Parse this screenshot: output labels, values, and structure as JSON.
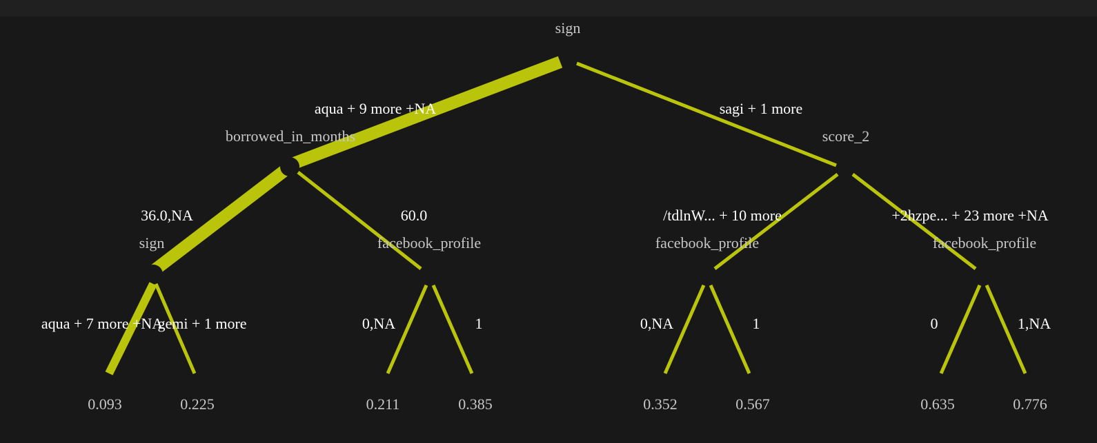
{
  "colors": {
    "background": "#181818",
    "edge": "#b9c40a",
    "node_text": "#c8c8c8",
    "edge_text": "#ffffff"
  },
  "tree": {
    "root": {
      "label": "sign"
    },
    "level1": [
      {
        "label": "borrowed_in_months",
        "edge_label": "aqua + 9 more +NA"
      },
      {
        "label": "score_2",
        "edge_label": "sagi + 1 more"
      }
    ],
    "level2": [
      {
        "label": "sign",
        "edge_label": "36.0,NA"
      },
      {
        "label": "facebook_profile",
        "edge_label": "60.0"
      },
      {
        "label": "facebook_profile",
        "edge_label": "/tdlnW... + 10 more"
      },
      {
        "label": "facebook_profile",
        "edge_label": "+2hzpe... + 23 more +NA"
      }
    ],
    "leaves": [
      {
        "value": "0.093",
        "edge_label": "aqua + 7 more +NA"
      },
      {
        "value": "0.225",
        "edge_label": "gemi + 1 more"
      },
      {
        "value": "0.211",
        "edge_label": "0,NA"
      },
      {
        "value": "0.385",
        "edge_label": "1"
      },
      {
        "value": "0.352",
        "edge_label": "0,NA"
      },
      {
        "value": "0.567",
        "edge_label": "1"
      },
      {
        "value": "0.635",
        "edge_label": "0"
      },
      {
        "value": "0.776",
        "edge_label": "1,NA"
      }
    ]
  }
}
